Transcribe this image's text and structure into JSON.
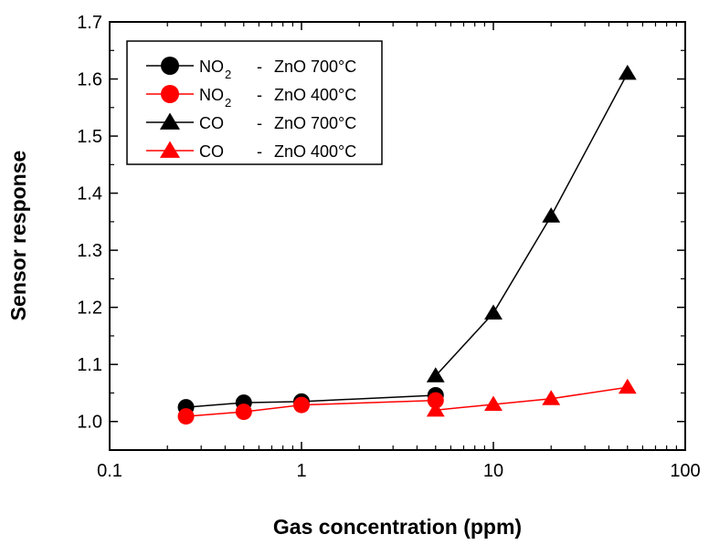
{
  "chart_data": {
    "type": "scatter",
    "xlabel": "Gas concentration (ppm)",
    "ylabel": "Sensor response",
    "xscale": "log",
    "xlim": [
      0.1,
      100
    ],
    "ylim": [
      0.95,
      1.7
    ],
    "x_ticks": [
      {
        "value": 0.1,
        "label": "0.1"
      },
      {
        "value": 1,
        "label": "1"
      },
      {
        "value": 10,
        "label": "10"
      },
      {
        "value": 100,
        "label": "100"
      }
    ],
    "y_ticks": [
      {
        "value": 1.0,
        "label": "1.0"
      },
      {
        "value": 1.1,
        "label": "1.1"
      },
      {
        "value": 1.2,
        "label": "1.2"
      },
      {
        "value": 1.3,
        "label": "1.3"
      },
      {
        "value": 1.4,
        "label": "1.4"
      },
      {
        "value": 1.5,
        "label": "1.5"
      },
      {
        "value": 1.6,
        "label": "1.6"
      },
      {
        "value": 1.7,
        "label": "1.7"
      }
    ],
    "grid": false,
    "legend_position": "top-left",
    "series": [
      {
        "name": "NO2 - ZnO 700°C",
        "legend": {
          "gas": "NO",
          "sub": "2",
          "sep": "-",
          "material": "ZnO 700°C"
        },
        "marker": "circle",
        "color": "#000000",
        "x": [
          0.25,
          0.5,
          1,
          5
        ],
        "y": [
          1.025,
          1.033,
          1.035,
          1.046
        ]
      },
      {
        "name": "NO2 - ZnO 400°C",
        "legend": {
          "gas": "NO",
          "sub": "2",
          "sep": "-",
          "material": "ZnO 400°C"
        },
        "marker": "circle",
        "color": "#ff0000",
        "x": [
          0.25,
          0.5,
          1,
          5
        ],
        "y": [
          1.009,
          1.017,
          1.029,
          1.037
        ]
      },
      {
        "name": "CO - ZnO 700°C",
        "legend": {
          "gas": "CO",
          "sub": "",
          "sep": "-",
          "material": "ZnO 700°C"
        },
        "marker": "triangle",
        "color": "#000000",
        "x": [
          5,
          10,
          20,
          50
        ],
        "y": [
          1.08,
          1.19,
          1.36,
          1.61
        ]
      },
      {
        "name": "CO - ZnO 400°C",
        "legend": {
          "gas": "CO",
          "sub": "",
          "sep": "-",
          "material": "ZnO 400°C"
        },
        "marker": "triangle",
        "color": "#ff0000",
        "x": [
          5,
          10,
          20,
          50
        ],
        "y": [
          1.02,
          1.03,
          1.04,
          1.06
        ]
      }
    ]
  }
}
